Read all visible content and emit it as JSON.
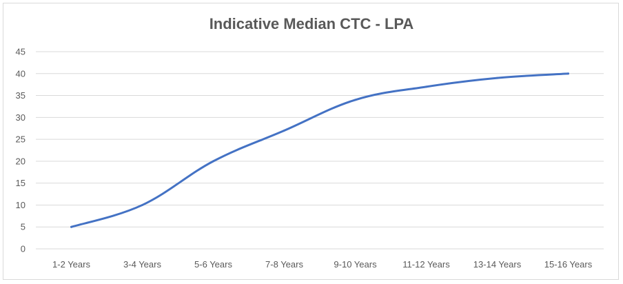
{
  "chart_data": {
    "type": "line",
    "title": "Indicative Median CTC - LPA",
    "categories": [
      "1-2 Years",
      "3-4 Years",
      "5-6 Years",
      "7-8 Years",
      "9-10 Years",
      "11-12 Years",
      "13-14 Years",
      "15-16 Years"
    ],
    "series": [
      {
        "values": [
          5,
          10,
          20,
          27,
          34,
          37,
          39,
          40
        ],
        "color": "#4472c4"
      }
    ],
    "ylim": [
      0,
      45
    ],
    "yticks": [
      0,
      5,
      10,
      15,
      20,
      25,
      30,
      35,
      40,
      45
    ],
    "grid": true,
    "legend": "none"
  }
}
